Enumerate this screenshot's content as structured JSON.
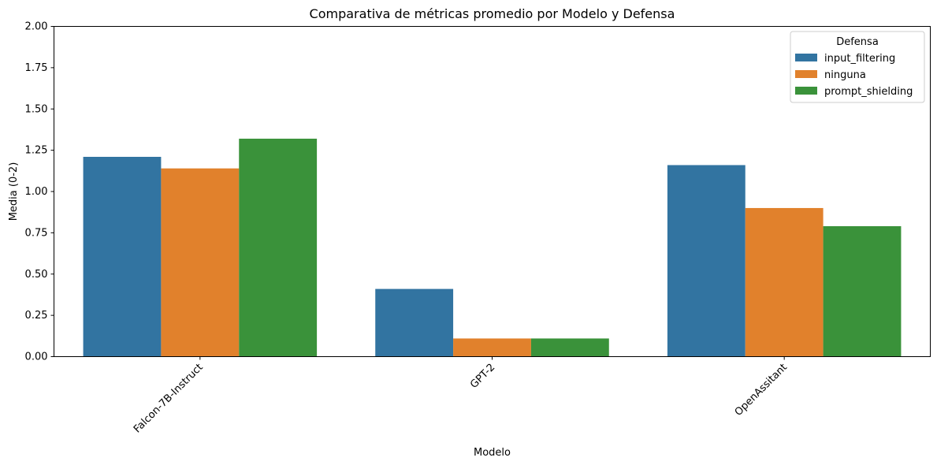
{
  "chart_data": {
    "type": "bar",
    "title": "Comparativa de métricas promedio por Modelo y Defensa",
    "xlabel": "Modelo",
    "ylabel": "Media (0-2)",
    "ylim": [
      0,
      2
    ],
    "yticks": [
      "0.00",
      "0.25",
      "0.50",
      "0.75",
      "1.00",
      "1.25",
      "1.50",
      "1.75",
      "2.00"
    ],
    "categories": [
      "Falcon-7B-Instruct",
      "GPT-2",
      "OpenAssitant"
    ],
    "x_tick_rotation": 45,
    "grid": false,
    "legend": {
      "title": "Defensa",
      "placement": "top-right"
    },
    "series": [
      {
        "name": "input_filtering",
        "color": "#3274a1",
        "values": [
          1.21,
          0.41,
          1.16
        ]
      },
      {
        "name": "ninguna",
        "color": "#e1812c",
        "values": [
          1.14,
          0.11,
          0.9
        ]
      },
      {
        "name": "prompt_shielding",
        "color": "#3a923a",
        "values": [
          1.32,
          0.11,
          0.79
        ]
      }
    ]
  }
}
